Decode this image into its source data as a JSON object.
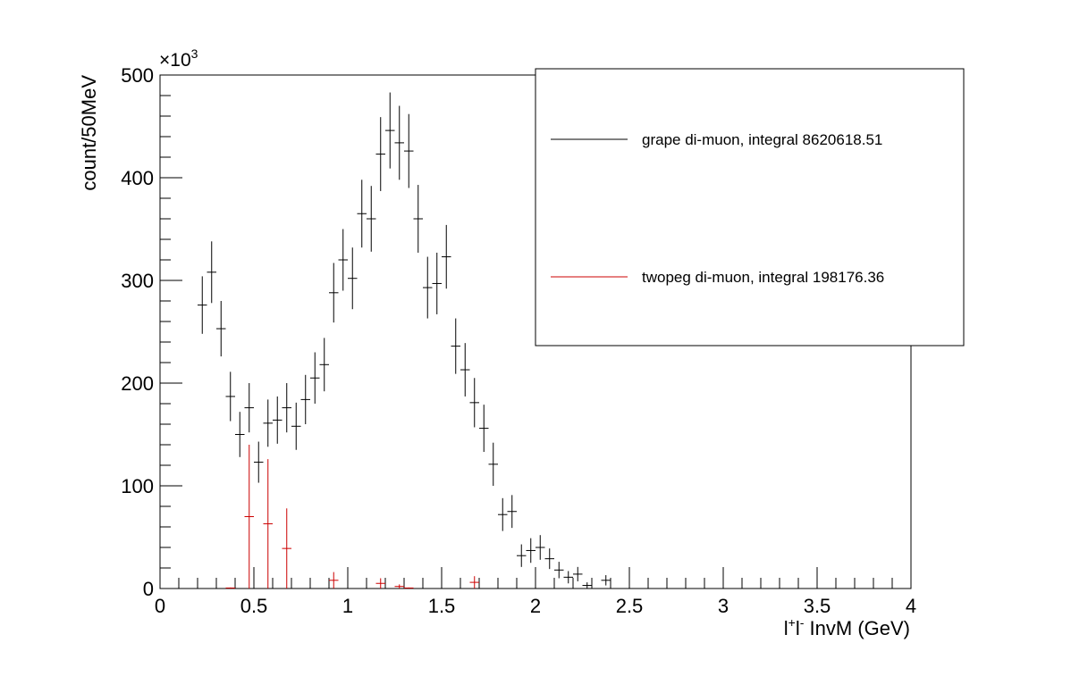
{
  "chart_data": {
    "type": "scatter",
    "xlabel_prefix": "l",
    "xlabel_sup1": "+",
    "xlabel_mid": "l",
    "xlabel_sup2": "-",
    "xlabel_suffix": " InvM (GeV)",
    "ylabel": "count/50MeV",
    "y_multiplier": "×10",
    "y_multiplier_exp": "3",
    "xlim": [
      0,
      4
    ],
    "ylim": [
      0,
      500
    ],
    "x_ticks": [
      "0",
      "0.5",
      "1",
      "1.5",
      "2",
      "2.5",
      "3",
      "3.5",
      "4"
    ],
    "y_ticks": [
      "0",
      "100",
      "200",
      "300",
      "400",
      "500"
    ],
    "bin_width": 0.05,
    "legend_position": "top-right",
    "grid": false,
    "series": [
      {
        "name": "grape di-muon, integral 8620618.51",
        "color": "#000000",
        "x": [
          0.225,
          0.275,
          0.325,
          0.375,
          0.425,
          0.475,
          0.525,
          0.575,
          0.625,
          0.675,
          0.725,
          0.775,
          0.825,
          0.875,
          0.925,
          0.975,
          1.025,
          1.075,
          1.125,
          1.175,
          1.225,
          1.275,
          1.325,
          1.375,
          1.425,
          1.475,
          1.525,
          1.575,
          1.625,
          1.675,
          1.725,
          1.775,
          1.825,
          1.875,
          1.925,
          1.975,
          2.025,
          2.075,
          2.125,
          2.175,
          2.225,
          2.275,
          2.375
        ],
        "y": [
          276,
          308,
          253,
          187,
          150,
          176,
          123,
          161,
          164,
          176,
          158,
          184,
          205,
          218,
          288,
          320,
          302,
          365,
          360,
          423,
          446,
          434,
          426,
          360,
          293,
          297,
          323,
          236,
          213,
          181,
          156,
          121,
          72,
          75,
          32,
          37,
          40,
          29,
          18,
          11,
          14,
          3,
          8
        ],
        "err": [
          28,
          30,
          27,
          24,
          22,
          24,
          20,
          23,
          23,
          24,
          23,
          24,
          25,
          26,
          29,
          30,
          30,
          33,
          32,
          36,
          37,
          36,
          36,
          33,
          30,
          30,
          31,
          27,
          26,
          24,
          23,
          21,
          16,
          16,
          11,
          12,
          12,
          10,
          8,
          6,
          7,
          3,
          5
        ]
      },
      {
        "name": "twopeg di-muon, integral 198176.36",
        "color": "#cc0000",
        "x": [
          0.375,
          0.475,
          0.575,
          0.675,
          0.925,
          1.175,
          1.275,
          1.325,
          1.675
        ],
        "y": [
          0.5,
          70,
          63,
          39,
          8,
          5,
          2,
          0.5,
          6
        ],
        "err": [
          0.5,
          70,
          63,
          39,
          8,
          5,
          2,
          0.5,
          6
        ]
      }
    ]
  }
}
